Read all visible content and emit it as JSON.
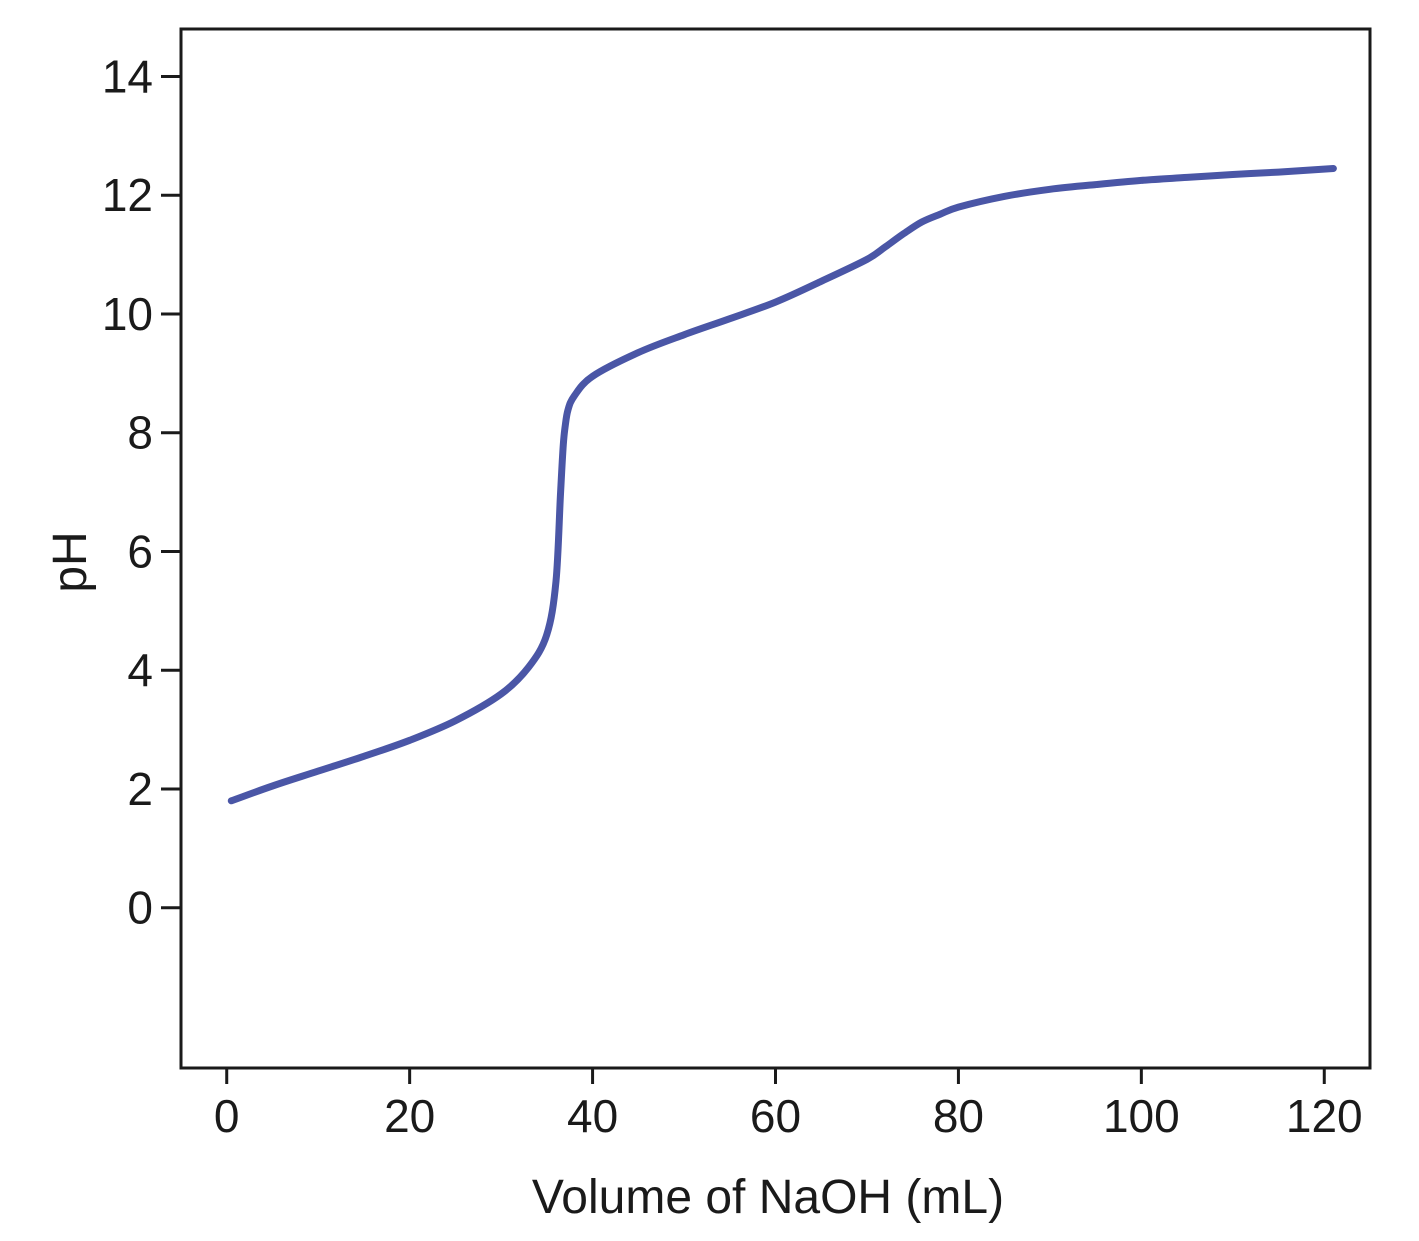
{
  "chart_data": {
    "type": "line",
    "title": "",
    "xlabel": "Volume of NaOH (mL)",
    "ylabel": "pH",
    "xlim": [
      -5,
      125
    ],
    "ylim": [
      -2.7,
      14.8
    ],
    "xticks": [
      0,
      20,
      40,
      60,
      80,
      100,
      120
    ],
    "yticks": [
      0,
      2,
      4,
      6,
      8,
      10,
      12,
      14
    ],
    "grid": false,
    "legend": "none",
    "series": [
      {
        "color": "#4a56a6",
        "x": [
          0.5,
          5,
          10,
          15,
          20,
          25,
          30,
          33,
          35,
          36,
          36.5,
          36.8,
          37,
          37.3,
          38,
          40,
          45,
          50,
          55,
          60,
          65,
          70,
          72,
          74,
          76,
          78,
          80,
          85,
          90,
          95,
          100,
          105,
          110,
          115,
          121
        ],
        "y": [
          1.8,
          2.05,
          2.3,
          2.55,
          2.82,
          3.15,
          3.6,
          4.05,
          4.6,
          5.5,
          7.0,
          7.8,
          8.1,
          8.38,
          8.62,
          8.95,
          9.35,
          9.65,
          9.92,
          10.2,
          10.55,
          10.92,
          11.13,
          11.35,
          11.55,
          11.68,
          11.8,
          11.98,
          12.1,
          12.18,
          12.25,
          12.3,
          12.35,
          12.39,
          12.45
        ]
      }
    ]
  }
}
